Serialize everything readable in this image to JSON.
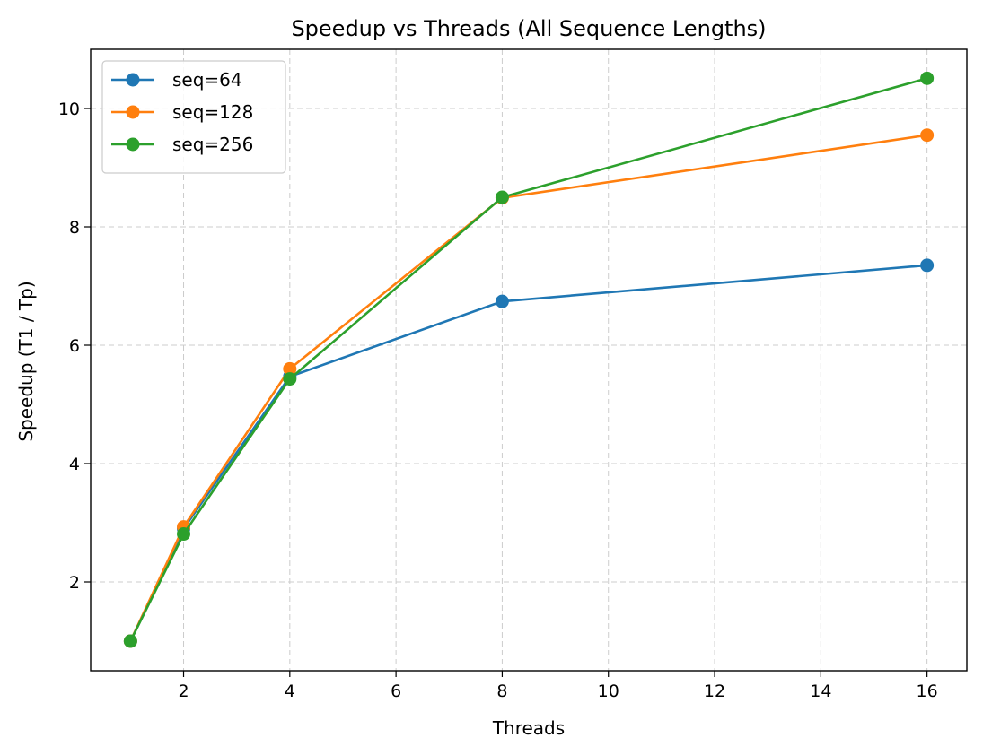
{
  "chart_data": {
    "type": "line",
    "title": "Speedup vs Threads (All Sequence Lengths)",
    "xlabel": "Threads",
    "ylabel": "Speedup (T1 / Tp)",
    "x": [
      1,
      2,
      4,
      8,
      16
    ],
    "xlim": [
      0.25,
      16.75
    ],
    "ylim": [
      0.5,
      11.0
    ],
    "xticks": [
      2,
      4,
      6,
      8,
      10,
      12,
      14,
      16
    ],
    "yticks": [
      2,
      4,
      6,
      8,
      10
    ],
    "grid": true,
    "legend_position": "top-left",
    "series": [
      {
        "name": "seq=64",
        "color": "#1f77b4",
        "values": [
          1.0,
          2.9,
          5.47,
          6.74,
          7.35
        ]
      },
      {
        "name": "seq=128",
        "color": "#ff7f0e",
        "values": [
          1.0,
          2.93,
          5.6,
          8.49,
          9.55
        ]
      },
      {
        "name": "seq=256",
        "color": "#2ca02c",
        "values": [
          1.0,
          2.81,
          5.43,
          8.5,
          10.51
        ]
      }
    ]
  }
}
